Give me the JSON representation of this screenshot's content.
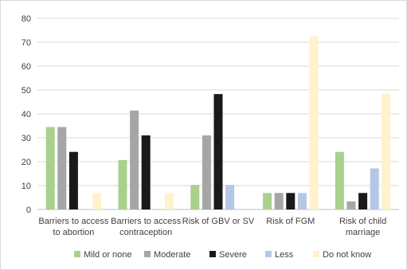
{
  "chart_data": {
    "type": "bar",
    "title": "",
    "xlabel": "",
    "ylabel": "",
    "ylim": [
      0,
      80
    ],
    "yticks": [
      0,
      10,
      20,
      30,
      40,
      50,
      60,
      70,
      80
    ],
    "grid": true,
    "legend_position": "bottom",
    "categories": [
      [
        "Barriers to access",
        "to abortion"
      ],
      [
        "Barriers to access",
        "contraception"
      ],
      [
        "Risk of GBV or SV"
      ],
      [
        "Risk of FGM"
      ],
      [
        "Risk of child",
        "marriage"
      ]
    ],
    "series": [
      {
        "name": "Mild or none",
        "color": "#a9d18e",
        "values": [
          34.5,
          20.7,
          10.3,
          6.9,
          24.1
        ]
      },
      {
        "name": "Moderate",
        "color": "#a6a6a6",
        "values": [
          34.5,
          41.4,
          31.0,
          6.9,
          3.4
        ]
      },
      {
        "name": "Severe",
        "color": "#1a1a1a",
        "values": [
          24.1,
          31.0,
          48.3,
          6.9,
          6.9
        ]
      },
      {
        "name": "Less",
        "color": "#b4c7e7",
        "values": [
          0,
          0,
          10.3,
          6.9,
          17.2
        ]
      },
      {
        "name": "Do not know",
        "color": "#fff2cc",
        "values": [
          6.9,
          6.9,
          0,
          72.4,
          48.3
        ]
      }
    ]
  }
}
